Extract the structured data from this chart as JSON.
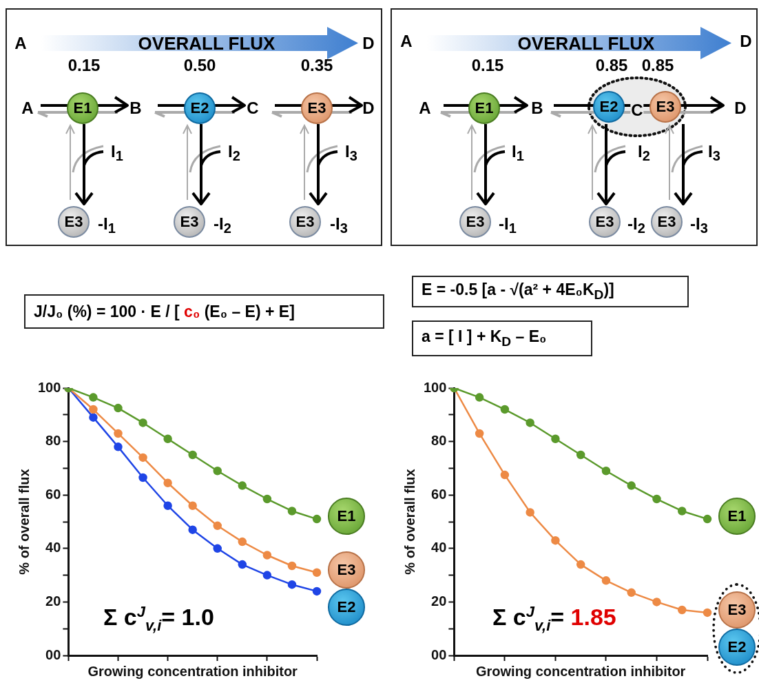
{
  "chart_data": [
    {
      "type": "other",
      "title": "OVERALL FLUX",
      "annotations": [
        "A",
        "D",
        "0.15",
        "0.50",
        "0.35",
        "A",
        "E1",
        "B",
        "E2",
        "C",
        "E3",
        "D",
        "I$_{1}$",
        "I$_{2}$",
        "I$_{3}$",
        "E3",
        "-I$_{1}$",
        "E3",
        "-I$_{2}$",
        "E3",
        "-I$_{3}$"
      ]
    },
    {
      "type": "other",
      "title": "OVERALL FLUX",
      "annotations": [
        "A",
        "D",
        "0.15",
        "0.85",
        "0.85",
        "A",
        "E1",
        "B",
        "E2",
        "C",
        "E3",
        "D",
        "I$_{1}$",
        "I$_{2}$",
        "I$_{3}$",
        "E3",
        "-I$_{1}$",
        "E3",
        "-I$_{2}$",
        "E3",
        "-I$_{3}$"
      ]
    },
    {
      "type": "line",
      "xlabel": "Growing concentration inhibitor",
      "ylabel": "% of overall flux",
      "marker": "circle",
      "tick_labels": "y",
      "categories": [
        null,
        null,
        null,
        null,
        null,
        null,
        null,
        null,
        null,
        null,
        null
      ],
      "ylim": [
        0,
        100
      ],
      "yticks": [
        {
          "value": 0,
          "label": "00"
        },
        {
          "value": 10,
          "label": null
        },
        20,
        {
          "value": 30,
          "label": null
        },
        40,
        {
          "value": 50,
          "label": null
        },
        60,
        {
          "value": 70,
          "label": null
        },
        80,
        {
          "value": 90,
          "label": null
        },
        100
      ],
      "series": [
        {
          "name": "E1",
          "color": "#5b9a2c",
          "values": [
            100,
            96.5,
            92.5,
            87,
            81,
            75,
            69,
            63.5,
            58.5,
            54,
            51
          ]
        },
        {
          "name": "E3",
          "color": "#ed8a45",
          "values": [
            100,
            92,
            83,
            74,
            64.5,
            56,
            48.5,
            42.5,
            37.5,
            33.5,
            31
          ]
        },
        {
          "name": "E2",
          "color": "#1f45e6",
          "values": [
            100,
            89,
            78,
            66.5,
            56,
            47,
            40,
            34,
            30,
            26.5,
            24
          ]
        }
      ],
      "annotations": [
        "J/J₀ (%) = 100 · E / [ ",
        "c₀",
        " (E₀ – E) + E]",
        "Σ c$^{J}$$_{v,i}$= 1.0"
      ]
    },
    {
      "type": "line",
      "xlabel": "Growing concentration inhibitor",
      "ylabel": "% of overall flux",
      "marker": "circle",
      "tick_labels": "y",
      "categories": [
        null,
        null,
        null,
        null,
        null,
        null,
        null,
        null,
        null,
        null,
        null
      ],
      "ylim": [
        0,
        100
      ],
      "yticks": [
        {
          "value": 0,
          "label": "00"
        },
        {
          "value": 10,
          "label": null
        },
        20,
        {
          "value": 30,
          "label": null
        },
        40,
        {
          "value": 50,
          "label": null
        },
        60,
        {
          "value": 70,
          "label": null
        },
        80,
        {
          "value": 90,
          "label": null
        },
        100
      ],
      "series": [
        {
          "name": "E1",
          "color": "#5b9a2c",
          "values": [
            100,
            96.5,
            92,
            87,
            81,
            75,
            69,
            63.5,
            58.5,
            54,
            51
          ]
        },
        {
          "name": "E3",
          "color": "#ed8a45",
          "values": [
            100,
            83,
            67.5,
            53.5,
            43,
            34,
            28,
            23.5,
            20,
            17,
            16
          ]
        }
      ],
      "annotations": [
        "E = -0.5 [a - √(a² + 4E₀K$_{D}$)]",
        "a = [ I ] + K$_{D}$ – E₀",
        "Σ c$^{J}$$_{v,i}$= ",
        "1.85",
        "E2"
      ]
    }
  ]
}
